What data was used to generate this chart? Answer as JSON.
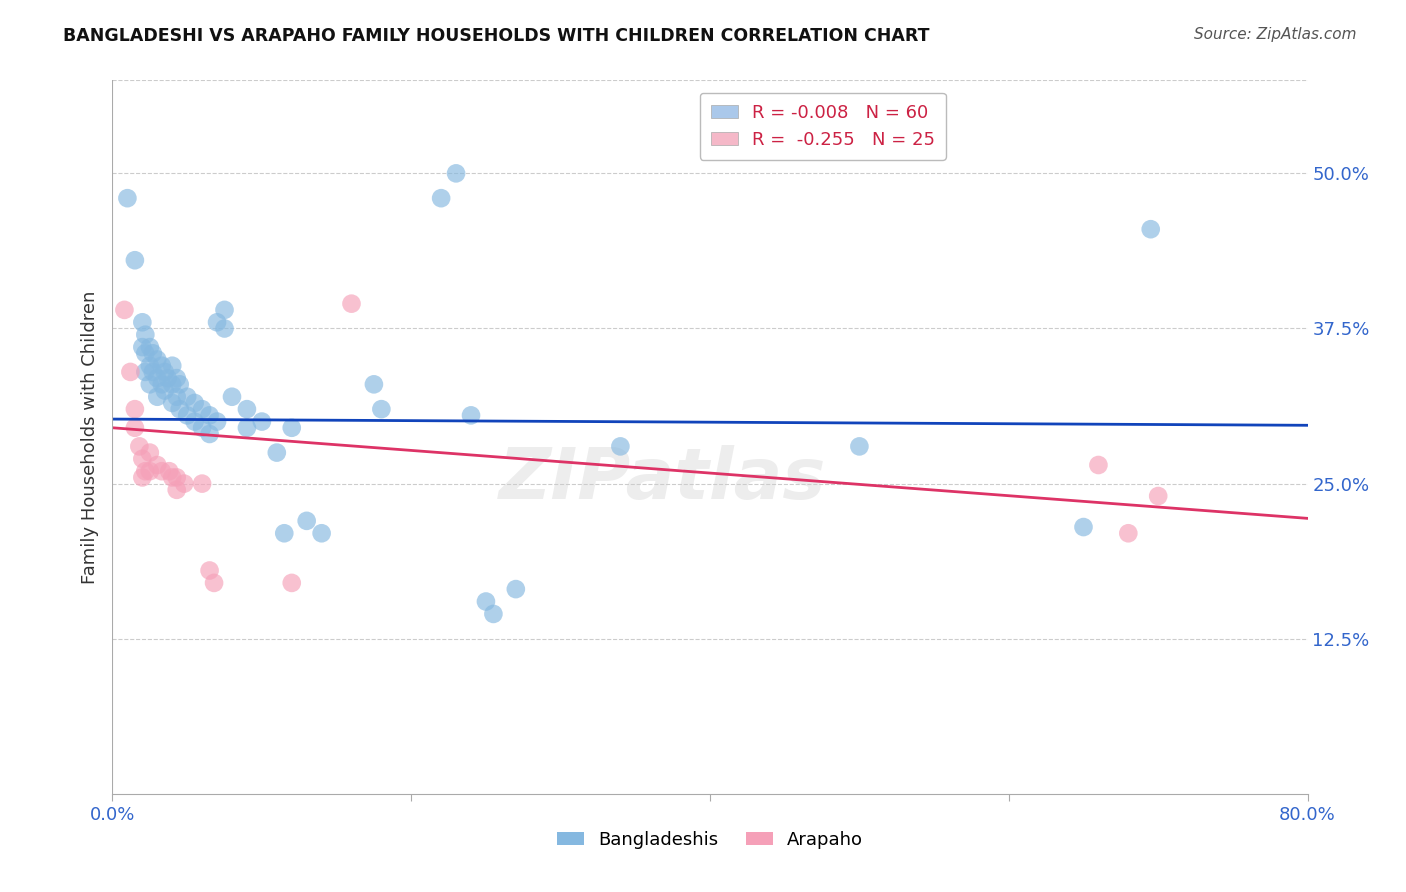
{
  "title": "BANGLADESHI VS ARAPAHO FAMILY HOUSEHOLDS WITH CHILDREN CORRELATION CHART",
  "source": "Source: ZipAtlas.com",
  "ylabel": "Family Households with Children",
  "xlim": [
    0.0,
    0.8
  ],
  "ylim": [
    0.0,
    0.575
  ],
  "xticks": [
    0.0,
    0.2,
    0.4,
    0.6,
    0.8
  ],
  "xticklabels": [
    "0.0%",
    "",
    "",
    "",
    "80.0%"
  ],
  "ytick_positions": [
    0.125,
    0.25,
    0.375,
    0.5
  ],
  "ytick_labels": [
    "12.5%",
    "25.0%",
    "37.5%",
    "50.0%"
  ],
  "watermark": "ZIPatlas",
  "legend_entries": [
    {
      "label": "R = -0.008   N = 60",
      "color": "#aac8ea"
    },
    {
      "label": "R =  -0.255   N = 25",
      "color": "#f5b8c8"
    }
  ],
  "blue_color": "#85b8e0",
  "pink_color": "#f5a0b8",
  "blue_line_color": "#1144bb",
  "pink_line_color": "#dd3366",
  "blue_points": [
    [
      0.01,
      0.48
    ],
    [
      0.015,
      0.43
    ],
    [
      0.02,
      0.38
    ],
    [
      0.02,
      0.36
    ],
    [
      0.022,
      0.37
    ],
    [
      0.022,
      0.355
    ],
    [
      0.022,
      0.34
    ],
    [
      0.025,
      0.36
    ],
    [
      0.025,
      0.345
    ],
    [
      0.025,
      0.33
    ],
    [
      0.027,
      0.355
    ],
    [
      0.027,
      0.34
    ],
    [
      0.03,
      0.35
    ],
    [
      0.03,
      0.335
    ],
    [
      0.03,
      0.32
    ],
    [
      0.033,
      0.345
    ],
    [
      0.033,
      0.33
    ],
    [
      0.035,
      0.34
    ],
    [
      0.035,
      0.325
    ],
    [
      0.037,
      0.335
    ],
    [
      0.04,
      0.345
    ],
    [
      0.04,
      0.33
    ],
    [
      0.04,
      0.315
    ],
    [
      0.043,
      0.335
    ],
    [
      0.043,
      0.32
    ],
    [
      0.045,
      0.33
    ],
    [
      0.045,
      0.31
    ],
    [
      0.05,
      0.32
    ],
    [
      0.05,
      0.305
    ],
    [
      0.055,
      0.315
    ],
    [
      0.055,
      0.3
    ],
    [
      0.06,
      0.31
    ],
    [
      0.06,
      0.295
    ],
    [
      0.065,
      0.305
    ],
    [
      0.065,
      0.29
    ],
    [
      0.07,
      0.3
    ],
    [
      0.07,
      0.38
    ],
    [
      0.075,
      0.39
    ],
    [
      0.075,
      0.375
    ],
    [
      0.08,
      0.32
    ],
    [
      0.09,
      0.31
    ],
    [
      0.09,
      0.295
    ],
    [
      0.1,
      0.3
    ],
    [
      0.11,
      0.275
    ],
    [
      0.115,
      0.21
    ],
    [
      0.12,
      0.295
    ],
    [
      0.13,
      0.22
    ],
    [
      0.14,
      0.21
    ],
    [
      0.175,
      0.33
    ],
    [
      0.18,
      0.31
    ],
    [
      0.22,
      0.48
    ],
    [
      0.23,
      0.5
    ],
    [
      0.24,
      0.305
    ],
    [
      0.25,
      0.155
    ],
    [
      0.255,
      0.145
    ],
    [
      0.27,
      0.165
    ],
    [
      0.34,
      0.28
    ],
    [
      0.5,
      0.28
    ],
    [
      0.65,
      0.215
    ],
    [
      0.695,
      0.455
    ]
  ],
  "pink_points": [
    [
      0.008,
      0.39
    ],
    [
      0.012,
      0.34
    ],
    [
      0.015,
      0.31
    ],
    [
      0.015,
      0.295
    ],
    [
      0.018,
      0.28
    ],
    [
      0.02,
      0.27
    ],
    [
      0.02,
      0.255
    ],
    [
      0.022,
      0.26
    ],
    [
      0.025,
      0.275
    ],
    [
      0.025,
      0.26
    ],
    [
      0.03,
      0.265
    ],
    [
      0.033,
      0.26
    ],
    [
      0.038,
      0.26
    ],
    [
      0.04,
      0.255
    ],
    [
      0.043,
      0.255
    ],
    [
      0.043,
      0.245
    ],
    [
      0.048,
      0.25
    ],
    [
      0.06,
      0.25
    ],
    [
      0.065,
      0.18
    ],
    [
      0.068,
      0.17
    ],
    [
      0.12,
      0.17
    ],
    [
      0.16,
      0.395
    ],
    [
      0.66,
      0.265
    ],
    [
      0.68,
      0.21
    ],
    [
      0.7,
      0.24
    ]
  ],
  "blue_regression": {
    "x_start": 0.0,
    "x_end": 0.8,
    "y_start": 0.302,
    "y_end": 0.297
  },
  "pink_regression": {
    "x_start": 0.0,
    "x_end": 0.8,
    "y_start": 0.295,
    "y_end": 0.222
  }
}
